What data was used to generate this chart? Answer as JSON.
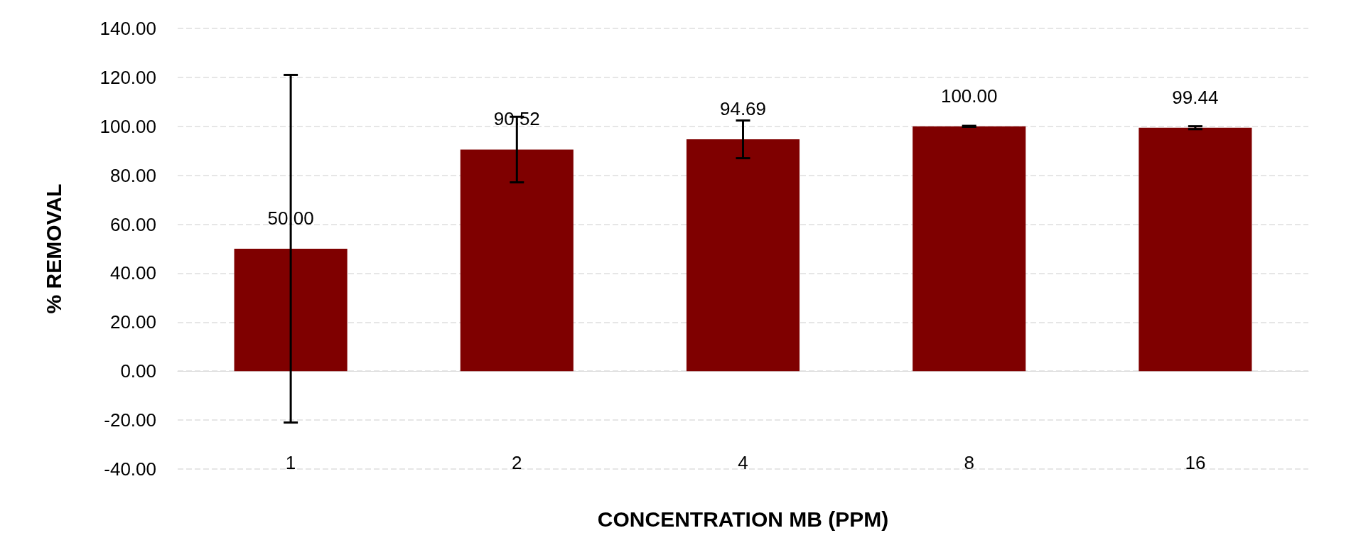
{
  "chart_data": {
    "type": "bar",
    "xlabel": "CONCENTRATION MB (PPM)",
    "ylabel": "% REMOVAL",
    "categories": [
      "1",
      "2",
      "4",
      "8",
      "16"
    ],
    "series": [
      {
        "color": "#7f0000",
        "values": [
          50.0,
          90.52,
          94.69,
          100.0,
          99.44
        ],
        "errors": [
          71,
          13.4,
          7.7,
          0.2,
          0.6
        ],
        "value_labels": [
          "50.00",
          "90.52",
          "94.69",
          "100.00",
          "99.44"
        ]
      }
    ],
    "ylim": [
      -40,
      140
    ],
    "yticks": [
      {
        "value": -40,
        "label": "-40.00"
      },
      {
        "value": -20,
        "label": "-20.00"
      },
      {
        "value": 0,
        "label": "0.00"
      },
      {
        "value": 20,
        "label": "20.00"
      },
      {
        "value": 40,
        "label": "40.00"
      },
      {
        "value": 60,
        "label": "60.00"
      },
      {
        "value": 80,
        "label": "80.00"
      },
      {
        "value": 100,
        "label": "100.00"
      },
      {
        "value": 120,
        "label": "120.00"
      },
      {
        "value": 140,
        "label": "140.00"
      }
    ],
    "grid": "y"
  }
}
